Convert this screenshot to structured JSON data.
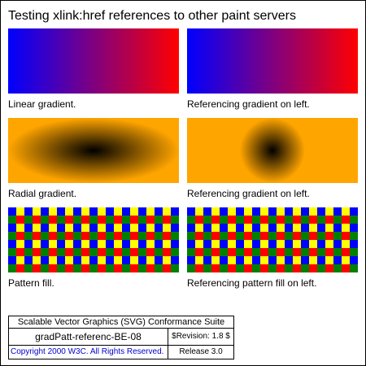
{
  "title": "Testing xlink:href references to other paint servers",
  "colors": {
    "gradient_start": "#0000ff",
    "gradient_end": "#ff0000",
    "radial_center": "#000000",
    "radial_edge": "#ffa500",
    "pattern_colors": [
      "#ffff00",
      "#0000ff",
      "#008000",
      "#ff0000"
    ]
  },
  "panels": {
    "linear": {
      "caption": "Linear gradient."
    },
    "linear_ref": {
      "caption": "Referencing gradient on left."
    },
    "radial": {
      "caption": "Radial gradient."
    },
    "radial_ref": {
      "caption": "Referencing gradient on left."
    },
    "pattern": {
      "caption": "Pattern fill."
    },
    "pattern_ref": {
      "caption": "Referencing pattern fill on left."
    }
  },
  "footer": {
    "suite": "Scalable Vector Graphics (SVG) Conformance Suite",
    "test_name": "gradPatt-referenc-BE-08",
    "revision": "$Revision: 1.8 $",
    "copyright": "Copyright 2000 W3C. All Rights Reserved.",
    "release": "Release 3.0"
  }
}
